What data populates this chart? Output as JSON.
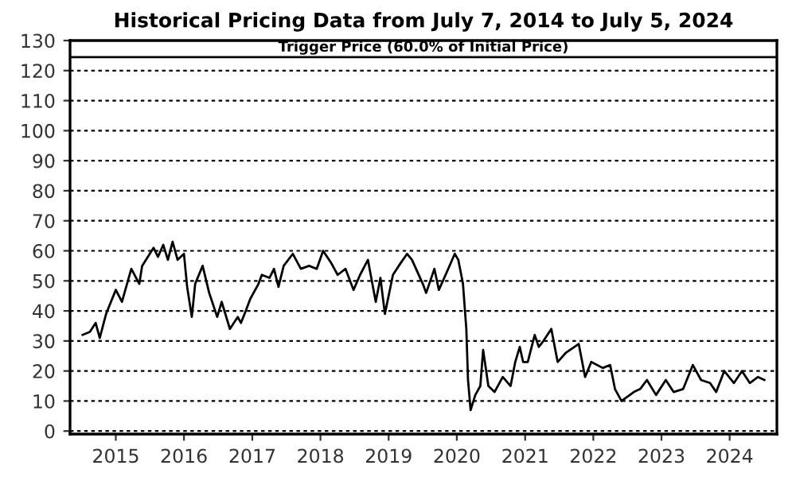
{
  "chart_data": {
    "type": "line",
    "title": "Historical Pricing Data from July 7, 2014 to July 5, 2024",
    "x": [
      "2014-07-07",
      "2014-08-15",
      "2014-09-15",
      "2014-10-07",
      "2014-11-10",
      "2015-01-01",
      "2015-02-03",
      "2015-03-25",
      "2015-05-07",
      "2015-05-22",
      "2015-07-22",
      "2015-08-15",
      "2015-09-12",
      "2015-10-07",
      "2015-11-01",
      "2015-11-28",
      "2016-01-01",
      "2016-01-18",
      "2016-02-12",
      "2016-03-01",
      "2016-04-10",
      "2016-05-15",
      "2016-06-27",
      "2016-07-21",
      "2016-09-03",
      "2016-10-15",
      "2016-11-01",
      "2016-11-27",
      "2016-12-21",
      "2017-02-03",
      "2017-02-21",
      "2017-04-03",
      "2017-04-27",
      "2017-05-21",
      "2017-06-18",
      "2017-08-06",
      "2017-09-18",
      "2017-11-01",
      "2017-12-12",
      "2018-01-15",
      "2018-02-27",
      "2018-04-03",
      "2018-05-15",
      "2018-06-27",
      "2018-08-01",
      "2018-09-12",
      "2018-10-24",
      "2018-11-18",
      "2018-12-12",
      "2019-01-24",
      "2019-03-07",
      "2019-04-10",
      "2019-05-06",
      "2019-07-03",
      "2019-07-21",
      "2019-09-03",
      "2019-09-27",
      "2019-11-09",
      "2019-12-21",
      "2020-01-09",
      "2020-02-03",
      "2020-02-21",
      "2020-03-01",
      "2020-03-15",
      "2020-04-09",
      "2020-05-06",
      "2020-05-21",
      "2020-06-18",
      "2020-07-21",
      "2020-09-03",
      "2020-10-15",
      "2020-11-09",
      "2020-12-03",
      "2020-12-21",
      "2021-01-15",
      "2021-02-21",
      "2021-03-15",
      "2021-04-09",
      "2021-05-21",
      "2021-06-24",
      "2021-08-06",
      "2021-10-15",
      "2021-11-18",
      "2021-12-21",
      "2022-02-21",
      "2022-04-01",
      "2022-04-27",
      "2022-06-01",
      "2022-08-06",
      "2022-09-09",
      "2022-10-15",
      "2022-12-03",
      "2023-01-24",
      "2023-03-07",
      "2023-04-27",
      "2023-06-18",
      "2023-08-01",
      "2023-09-18",
      "2023-10-21",
      "2023-12-03",
      "2024-01-24",
      "2024-03-07",
      "2024-04-18",
      "2024-06-01",
      "2024-07-05"
    ],
    "series": [
      {
        "color": "#000000",
        "values": [
          32,
          33,
          36,
          31,
          39,
          47,
          43,
          54,
          49,
          55,
          61,
          58,
          62,
          57,
          63,
          57,
          59,
          48,
          38,
          49,
          55,
          46,
          38,
          43,
          34,
          38,
          36,
          40,
          44,
          49,
          52,
          51,
          54,
          48,
          55,
          59,
          54,
          55,
          54,
          60,
          56,
          52,
          54,
          47,
          52,
          57,
          43,
          51,
          39,
          52,
          56,
          59,
          57,
          49,
          46,
          54,
          47,
          53,
          59,
          57,
          49,
          34,
          17,
          7,
          12,
          15,
          27,
          15,
          13,
          18,
          15,
          23,
          28,
          23,
          23,
          32,
          28,
          30,
          34,
          23,
          26,
          29,
          18,
          23,
          21,
          22,
          14,
          10,
          13,
          14,
          17,
          12,
          17,
          13,
          14,
          22,
          17,
          16,
          13,
          20,
          16,
          20,
          16,
          18,
          17
        ]
      }
    ],
    "xlim": [
      "2014-05-01",
      "2024-09-10"
    ],
    "xticks": [
      {
        "value": "2015-01-01",
        "label": "2015"
      },
      {
        "value": "2016-01-01",
        "label": "2016"
      },
      {
        "value": "2017-01-01",
        "label": "2017"
      },
      {
        "value": "2018-01-01",
        "label": "2018"
      },
      {
        "value": "2019-01-01",
        "label": "2019"
      },
      {
        "value": "2020-01-01",
        "label": "2020"
      },
      {
        "value": "2021-01-01",
        "label": "2021"
      },
      {
        "value": "2022-01-01",
        "label": "2022"
      },
      {
        "value": "2023-01-01",
        "label": "2023"
      },
      {
        "value": "2024-01-01",
        "label": "2024"
      }
    ],
    "ylim": [
      -1,
      130
    ],
    "yticks": [
      0,
      10,
      20,
      30,
      40,
      50,
      60,
      70,
      80,
      90,
      100,
      110,
      120,
      130
    ],
    "grid": "y",
    "ref_lines": [
      {
        "axis": "y",
        "value": 124.5,
        "label": "Trigger Price (60.0% of Initial Price)",
        "color": "#000000",
        "line_style": "solid"
      }
    ]
  }
}
